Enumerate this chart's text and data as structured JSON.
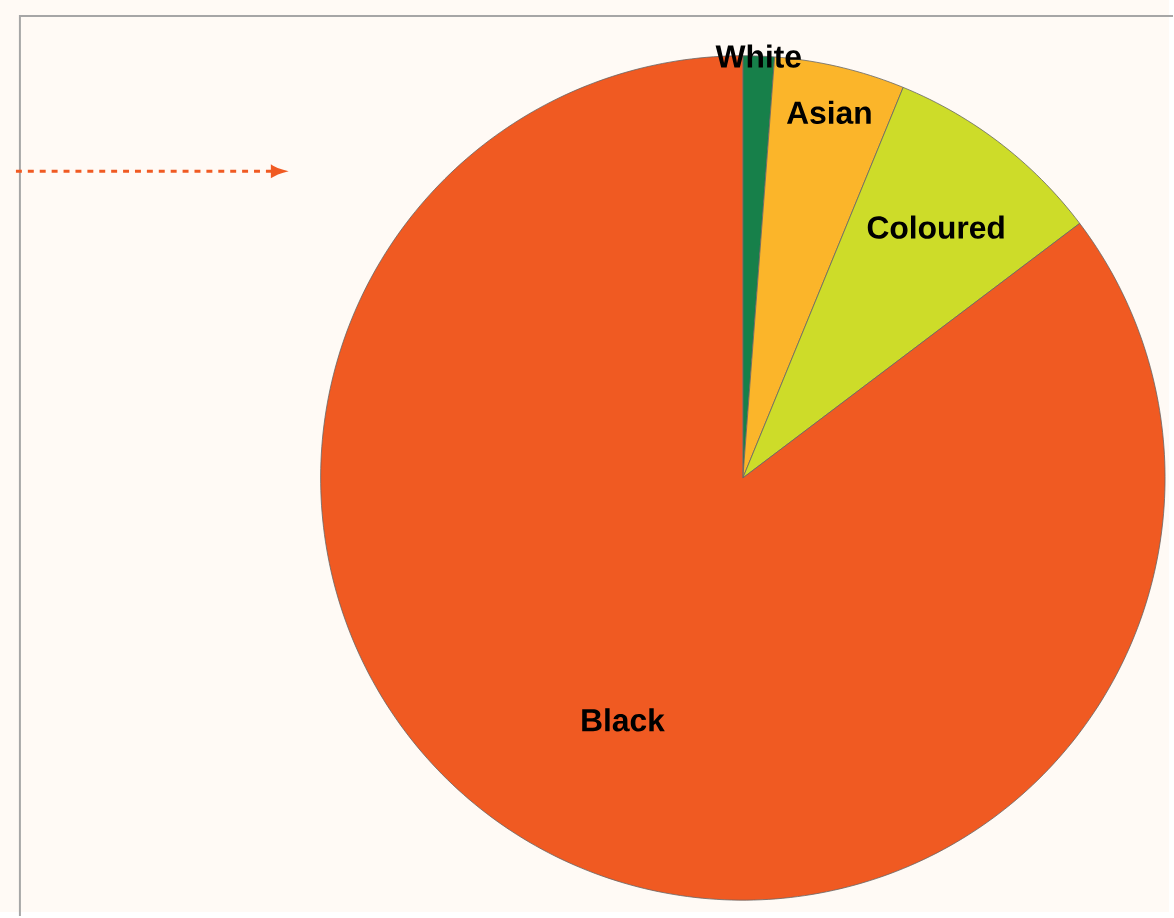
{
  "chart_data": {
    "type": "pie",
    "categories": [
      "White",
      "Asian",
      "Coloured",
      "Black"
    ],
    "values": [
      1.2,
      5,
      8.5,
      85.3
    ],
    "colors": [
      "#17804a",
      "#fbb52a",
      "#cddc29",
      "#f05a22"
    ]
  }
}
